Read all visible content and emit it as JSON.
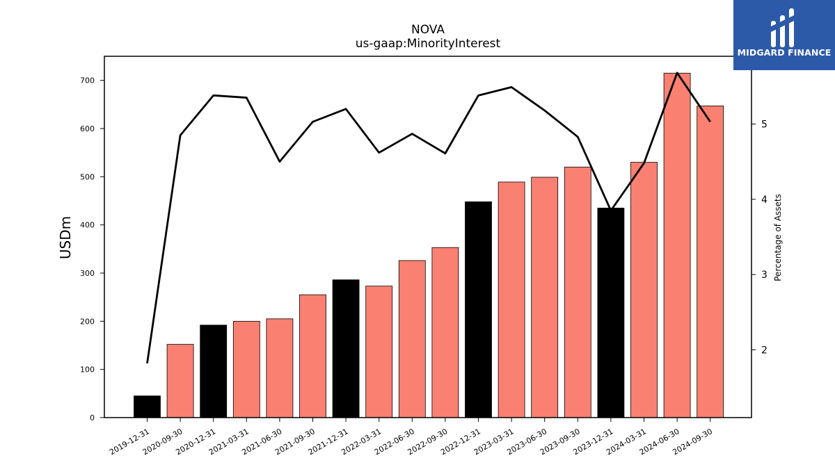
{
  "brand": {
    "name": "MIDGARD FINANCE",
    "background_color": "#2d5aa8",
    "icon": "midgard-logo-icon"
  },
  "chart_data": {
    "type": "bar",
    "title": "NOVA",
    "subtitle": "us-gaap:MinorityInterest",
    "ylabel": "USDm",
    "y2label": "Percentage of Assets",
    "ylim": [
      0,
      750
    ],
    "y2lim": [
      1.1,
      5.9
    ],
    "yticks": [
      0,
      100,
      200,
      300,
      400,
      500,
      600,
      700
    ],
    "y2ticks": [
      2,
      3,
      4,
      5
    ],
    "grid": false,
    "legend": "none",
    "categories": [
      "2019-12-31",
      "2020-09-30",
      "2020-12-31",
      "2021-03-31",
      "2021-06-30",
      "2021-09-30",
      "2021-12-31",
      "2022-03-31",
      "2022-06-30",
      "2022-09-30",
      "2022-12-31",
      "2023-03-31",
      "2023-06-30",
      "2023-09-30",
      "2023-12-31",
      "2024-03-31",
      "2024-06-30",
      "2024-09-30"
    ],
    "series": [
      {
        "type": "bar",
        "values": [
          45,
          152,
          192,
          200,
          205,
          255,
          286,
          273,
          326,
          353,
          448,
          489,
          499,
          520,
          435,
          530,
          715,
          647
        ],
        "colors": [
          "#000000",
          "#fa8072",
          "#000000",
          "#fa8072",
          "#fa8072",
          "#fa8072",
          "#000000",
          "#fa8072",
          "#fa8072",
          "#fa8072",
          "#000000",
          "#fa8072",
          "#fa8072",
          "#fa8072",
          "#000000",
          "#fa8072",
          "#fa8072",
          "#fa8072"
        ]
      },
      {
        "type": "line",
        "axis": "right",
        "color": "#000000",
        "values": [
          1.82,
          4.85,
          5.38,
          5.35,
          4.5,
          5.03,
          5.2,
          4.62,
          4.87,
          4.61,
          5.38,
          5.49,
          5.18,
          4.83,
          3.85,
          4.48,
          5.68,
          5.03
        ]
      }
    ]
  }
}
